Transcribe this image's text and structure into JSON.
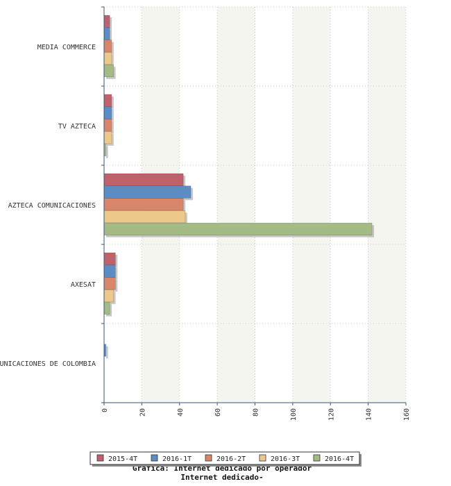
{
  "chart_data": {
    "type": "bar",
    "orientation": "horizontal",
    "categories": [
      "MEDIA COMMERCE",
      "TV AZTECA",
      "AZTECA COMUNICACIONES",
      "AXESAT",
      "COMUNICACIONES DE COLOMBIA"
    ],
    "series": [
      {
        "name": "2015-4T",
        "color": "#c0606a",
        "values": [
          3,
          4,
          42,
          6,
          0
        ]
      },
      {
        "name": "2016-1T",
        "color": "#5b8cc4",
        "values": [
          3,
          4,
          46,
          6,
          1
        ]
      },
      {
        "name": "2016-2T",
        "color": "#d9856a",
        "values": [
          4,
          4,
          42,
          6,
          0
        ]
      },
      {
        "name": "2016-3T",
        "color": "#ecc98a",
        "values": [
          4,
          4,
          43,
          5,
          0
        ]
      },
      {
        "name": "2016-4T",
        "color": "#a4bb86",
        "values": [
          5,
          1,
          142,
          3,
          0
        ]
      }
    ],
    "xlim": [
      0,
      160
    ],
    "xticks": [
      0,
      20,
      40,
      60,
      80,
      100,
      120,
      140,
      160
    ],
    "grid": true,
    "legend_position": "bottom",
    "caption": [
      "Grafica: Internet dedicado por operador",
      "Internet dedicado-"
    ]
  }
}
